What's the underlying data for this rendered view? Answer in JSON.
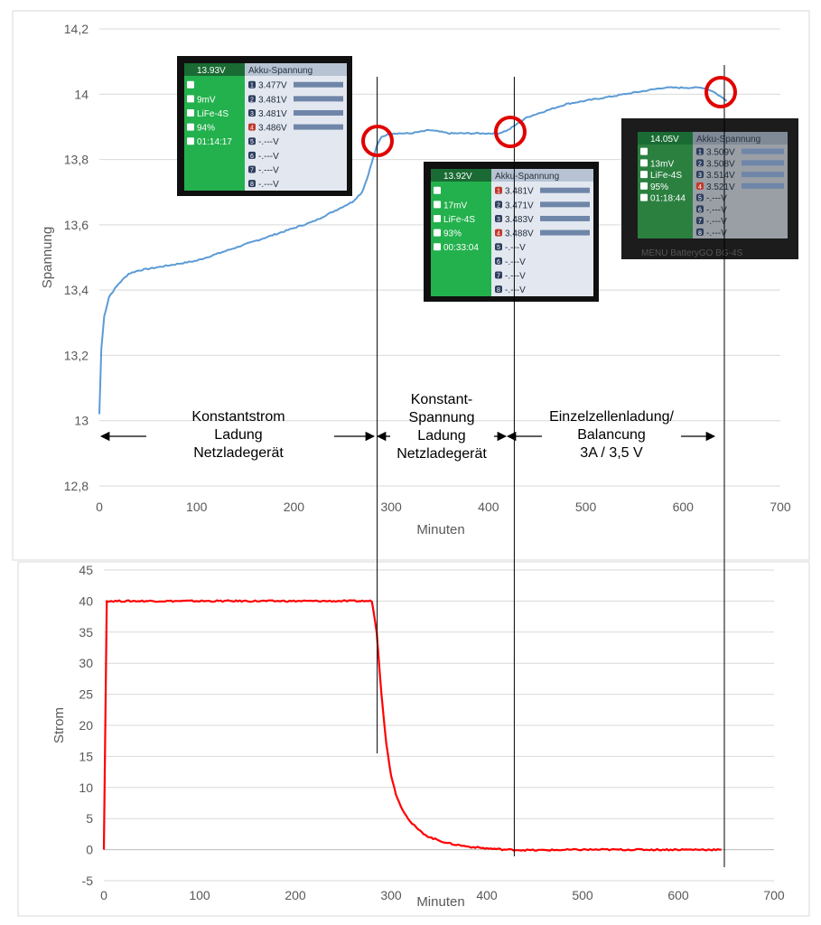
{
  "chart_data": [
    {
      "type": "line",
      "ylabel": "Spannung",
      "xlabel": "Minuten",
      "xlim": [
        0,
        700
      ],
      "ylim": [
        12.8,
        14.2
      ],
      "xticks": [
        "0",
        "100",
        "200",
        "300",
        "400",
        "500",
        "600",
        "700"
      ],
      "yticks": [
        "12,8",
        "13",
        "13,2",
        "13,4",
        "13,6",
        "13,8",
        "14",
        "14,2"
      ],
      "grid": "horizontal",
      "series": [
        {
          "color": "#5b9bd5",
          "x": [
            0,
            2,
            5,
            10,
            20,
            30,
            40,
            60,
            80,
            100,
            120,
            140,
            160,
            180,
            200,
            220,
            240,
            260,
            270,
            275,
            280,
            285,
            290,
            300,
            320,
            340,
            360,
            380,
            400,
            410,
            420,
            430,
            440,
            460,
            480,
            500,
            520,
            540,
            560,
            580,
            600,
            610,
            620,
            630,
            640,
            645
          ],
          "y": [
            13.02,
            13.22,
            13.32,
            13.38,
            13.42,
            13.45,
            13.46,
            13.47,
            13.48,
            13.49,
            13.51,
            13.53,
            13.55,
            13.57,
            13.59,
            13.61,
            13.64,
            13.67,
            13.7,
            13.74,
            13.79,
            13.84,
            13.87,
            13.88,
            13.88,
            13.89,
            13.88,
            13.88,
            13.88,
            13.88,
            13.89,
            13.91,
            13.93,
            13.95,
            13.97,
            13.98,
            13.99,
            14.0,
            14.01,
            14.02,
            14.02,
            14.02,
            14.02,
            14.01,
            13.99,
            13.98
          ]
        }
      ],
      "markers_x": [
        280,
        420,
        635
      ],
      "phases": [
        {
          "label_lines": [
            "Konstantstrom",
            "Ladung",
            "Netzladegerät"
          ]
        },
        {
          "label_lines": [
            "Konstant-",
            "Spannung",
            "Ladung",
            "Netzladegerät"
          ]
        },
        {
          "label_lines": [
            "Einzelzellenladung/",
            "Balancung",
            "3A / 3,5 V"
          ]
        }
      ]
    },
    {
      "type": "line",
      "ylabel": "Strom",
      "xlabel": "Minuten",
      "xlim": [
        0,
        700
      ],
      "ylim": [
        -5,
        45
      ],
      "xticks": [
        "0",
        "100",
        "200",
        "300",
        "400",
        "500",
        "600",
        "700"
      ],
      "yticks": [
        "-5",
        "0",
        "5",
        "10",
        "15",
        "20",
        "25",
        "30",
        "35",
        "40",
        "45"
      ],
      "grid": "horizontal",
      "series": [
        {
          "color": "#ff0000",
          "x": [
            0,
            3,
            10,
            50,
            100,
            150,
            200,
            250,
            280,
            285,
            290,
            295,
            300,
            305,
            310,
            320,
            330,
            340,
            360,
            380,
            400,
            420,
            450,
            500,
            550,
            600,
            645
          ],
          "y": [
            0,
            40,
            40,
            40,
            40,
            40,
            40,
            40,
            40,
            35,
            25,
            17,
            12,
            9,
            7,
            4.5,
            3,
            2,
            1,
            0.5,
            0.2,
            0,
            -0.1,
            0,
            0,
            0,
            0
          ]
        }
      ]
    }
  ],
  "screens": [
    {
      "rows": [
        {
          "left": "13.93V",
          "right": "3.477V",
          "num": "1"
        },
        {
          "left": "9mV",
          "right": "3.481V",
          "num": "2"
        },
        {
          "left": "LiFe-4S",
          "right": "3.481V",
          "num": "3"
        },
        {
          "left": "94%",
          "right": "3.486V",
          "num": "4"
        },
        {
          "left": "01:14:17",
          "right": "-.---V",
          "num": "5"
        },
        {
          "left": "",
          "right": "-.---V",
          "num": "6"
        },
        {
          "left": "",
          "right": "-.---V",
          "num": "7"
        },
        {
          "left": "",
          "right": "-.---V",
          "num": "8"
        }
      ],
      "header": "Akku-Spannung"
    },
    {
      "rows": [
        {
          "left": "13.92V",
          "right": "3.481V",
          "num": "1"
        },
        {
          "left": "17mV",
          "right": "3.471V",
          "num": "2"
        },
        {
          "left": "LiFe-4S",
          "right": "3.483V",
          "num": "3"
        },
        {
          "left": "93%",
          "right": "3.488V",
          "num": "4"
        },
        {
          "left": "00:33:04",
          "right": "-.---V",
          "num": "5"
        },
        {
          "left": "",
          "right": "-.---V",
          "num": "6"
        },
        {
          "left": "",
          "right": "-.---V",
          "num": "7"
        },
        {
          "left": "",
          "right": "-.---V",
          "num": "8"
        }
      ],
      "header": "Akku-Spannung"
    },
    {
      "rows": [
        {
          "left": "14.05V",
          "right": "3.509V",
          "num": "1"
        },
        {
          "left": "13mV",
          "right": "3.508V",
          "num": "2"
        },
        {
          "left": "LiFe-4S",
          "right": "3.514V",
          "num": "3"
        },
        {
          "left": "95%",
          "right": "3.521V",
          "num": "4"
        },
        {
          "left": "01:18:44",
          "right": "-.---V",
          "num": "5"
        },
        {
          "left": "",
          "right": "-.---V",
          "num": "6"
        },
        {
          "left": "",
          "right": "-.---V",
          "num": "7"
        },
        {
          "left": "",
          "right": "-.---V",
          "num": "8"
        }
      ],
      "header": "Akku-Spannung",
      "footer": "MENU   BatteryGO   BG-4S"
    }
  ]
}
